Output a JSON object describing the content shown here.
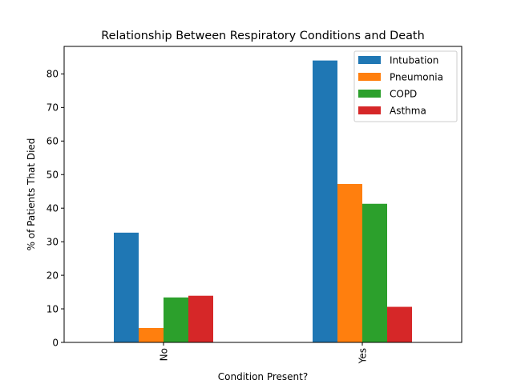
{
  "chart_data": {
    "type": "bar",
    "title": "Relationship Between Respiratory Conditions and Death",
    "xlabel": "Condition Present?",
    "ylabel": "% of Patients That Died",
    "categories": [
      "No",
      "Yes"
    ],
    "series": [
      {
        "name": "Intubation",
        "color": "#1f77b4",
        "values": [
          32.7,
          84.0
        ]
      },
      {
        "name": "Pneumonia",
        "color": "#ff7f0e",
        "values": [
          4.3,
          47.2
        ]
      },
      {
        "name": "COPD",
        "color": "#2ca02c",
        "values": [
          13.4,
          41.3
        ]
      },
      {
        "name": "Asthma",
        "color": "#d62728",
        "values": [
          13.9,
          10.6
        ]
      }
    ],
    "ylim": [
      0,
      88.2
    ],
    "yticks": [
      0,
      10,
      20,
      30,
      40,
      50,
      60,
      70,
      80
    ],
    "grid": false,
    "legend_position": "top-right",
    "x_tick_rotation": 90
  }
}
